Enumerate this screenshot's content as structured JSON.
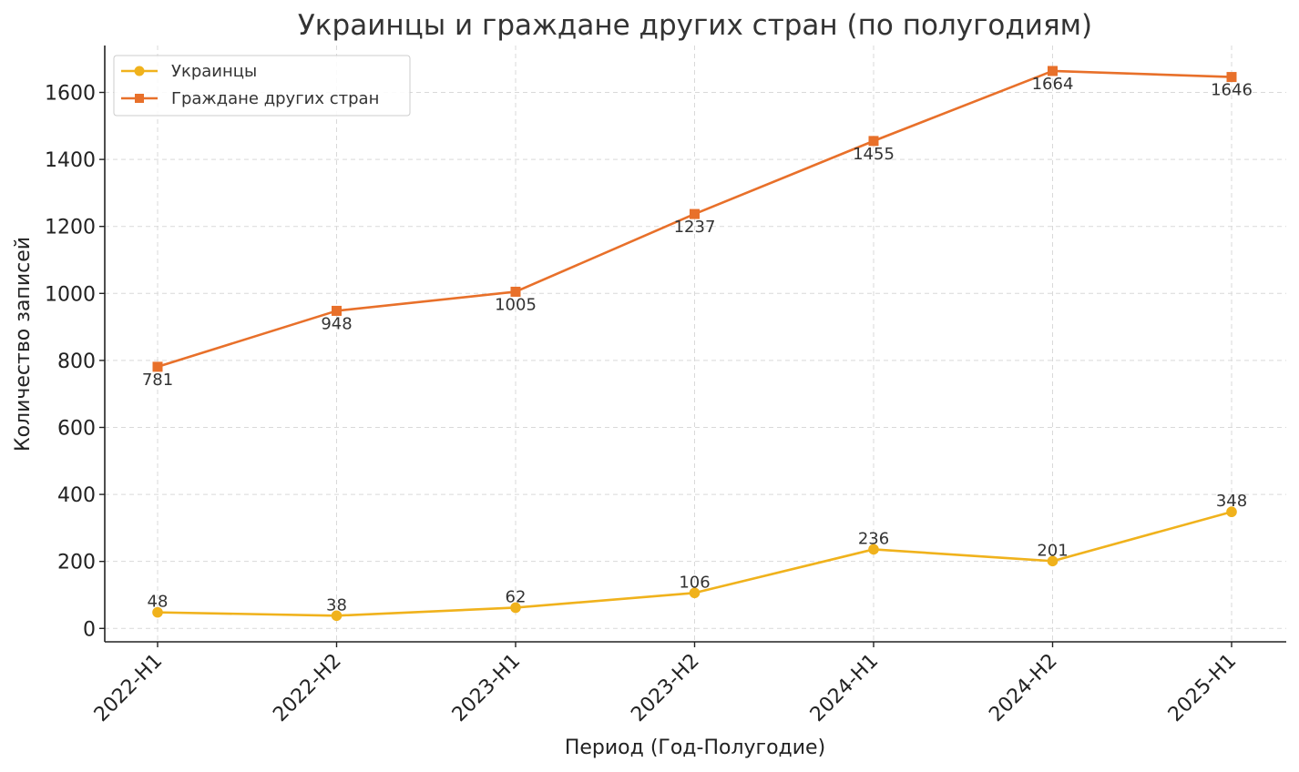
{
  "chart_data": {
    "type": "line",
    "title": "Украинцы и граждане других стран (по полугодиям)",
    "xlabel": "Период (Год-Полугодие)",
    "ylabel": "Количество записей",
    "categories": [
      "2022-H1",
      "2022-H2",
      "2023-H1",
      "2023-H2",
      "2024-H1",
      "2024-H2",
      "2025-H1"
    ],
    "ylim": [
      -40,
      1740
    ],
    "yticks": [
      0,
      200,
      400,
      600,
      800,
      1000,
      1200,
      1400,
      1600
    ],
    "grid": true,
    "legend_position": "top-left",
    "series": [
      {
        "name": "Украинцы",
        "marker": "circle",
        "color": "#f0b21c",
        "label_position": "above",
        "values": [
          48,
          38,
          62,
          106,
          236,
          201,
          348
        ]
      },
      {
        "name": "Граждане других стран",
        "marker": "square",
        "color": "#e8702a",
        "label_position": "below",
        "values": [
          781,
          948,
          1005,
          1237,
          1455,
          1664,
          1646
        ]
      }
    ]
  }
}
